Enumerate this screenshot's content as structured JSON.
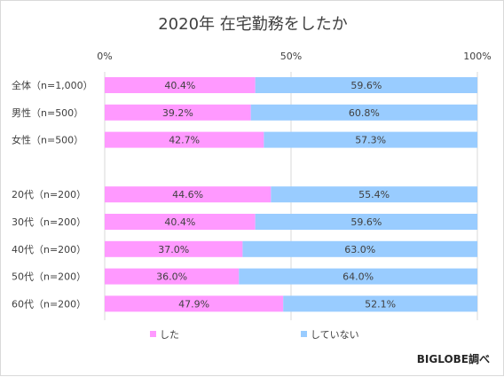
{
  "chart_data": {
    "type": "bar",
    "orientation": "horizontal",
    "stacked": true,
    "title": "2020年 在宅勤務をしたか",
    "x_ticks": [
      "0%",
      "50%",
      "100%"
    ],
    "xlim": [
      0,
      100
    ],
    "grid": true,
    "legend_position": "bottom",
    "categories": [
      "全体（n=1,000）",
      "男性（n=500）",
      "女性（n=500）",
      "",
      "20代（n=200）",
      "30代（n=200）",
      "40代（n=200）",
      "50代（n=200）",
      "60代（n=200）"
    ],
    "series": [
      {
        "name": "した",
        "color": "#ff99ff",
        "values": [
          40.4,
          39.2,
          42.7,
          null,
          44.6,
          40.4,
          37.0,
          36.0,
          47.9
        ],
        "labels": [
          "40.4%",
          "39.2%",
          "42.7%",
          "",
          "44.6%",
          "40.4%",
          "37.0%",
          "36.0%",
          "47.9%"
        ]
      },
      {
        "name": "していない",
        "color": "#99ccff",
        "values": [
          59.6,
          60.8,
          57.3,
          null,
          55.4,
          59.6,
          63.0,
          64.0,
          52.1
        ],
        "labels": [
          "59.6%",
          "60.8%",
          "57.3%",
          "",
          "55.4%",
          "59.6%",
          "63.0%",
          "64.0%",
          "52.1%"
        ]
      }
    ],
    "source": "BIGLOBE調べ"
  }
}
